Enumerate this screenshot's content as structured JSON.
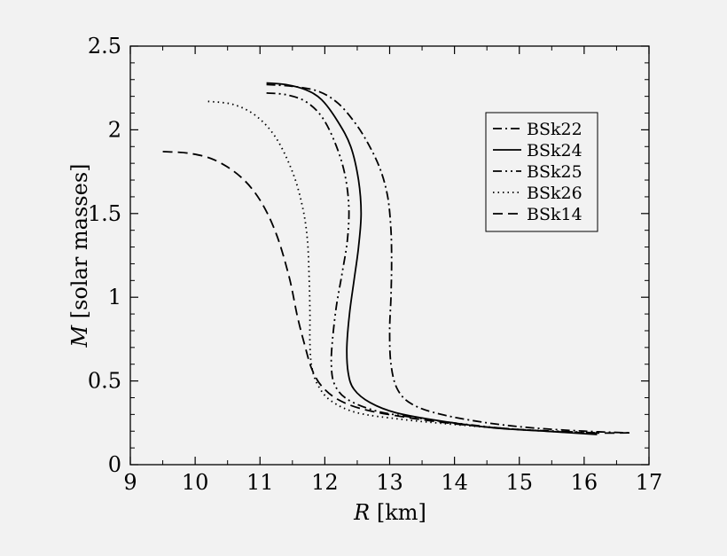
{
  "chart_data": {
    "type": "line",
    "xlabel": {
      "symbol": "R",
      "unit": " [km]"
    },
    "ylabel": {
      "symbol": "M",
      "unit": " [solar masses]"
    },
    "xlim": [
      9,
      17
    ],
    "ylim": [
      0,
      2.5
    ],
    "xticks": [
      "9",
      "10",
      "11",
      "12",
      "13",
      "14",
      "15",
      "16",
      "17"
    ],
    "yticks": [
      "0",
      "0.5",
      "1",
      "1.5",
      "2",
      "2.5"
    ],
    "grid": false,
    "legend_position": "top-right",
    "series": [
      {
        "name": "BSk22",
        "dash": "dashdot",
        "points": [
          [
            11.1,
            2.27
          ],
          [
            11.5,
            2.26
          ],
          [
            11.9,
            2.23
          ],
          [
            12.2,
            2.16
          ],
          [
            12.45,
            2.05
          ],
          [
            12.65,
            1.93
          ],
          [
            12.85,
            1.77
          ],
          [
            12.97,
            1.6
          ],
          [
            13.02,
            1.4
          ],
          [
            13.03,
            1.2
          ],
          [
            13.02,
            1.0
          ],
          [
            13.0,
            0.8
          ],
          [
            13.02,
            0.6
          ],
          [
            13.12,
            0.45
          ],
          [
            13.35,
            0.36
          ],
          [
            13.8,
            0.3
          ],
          [
            14.5,
            0.25
          ],
          [
            15.2,
            0.22
          ],
          [
            16.0,
            0.2
          ],
          [
            16.7,
            0.19
          ]
        ]
      },
      {
        "name": "BSk24",
        "dash": "solid",
        "points": [
          [
            11.1,
            2.28
          ],
          [
            11.4,
            2.27
          ],
          [
            11.7,
            2.24
          ],
          [
            11.95,
            2.18
          ],
          [
            12.2,
            2.05
          ],
          [
            12.4,
            1.9
          ],
          [
            12.52,
            1.7
          ],
          [
            12.56,
            1.5
          ],
          [
            12.52,
            1.3
          ],
          [
            12.45,
            1.1
          ],
          [
            12.38,
            0.9
          ],
          [
            12.34,
            0.7
          ],
          [
            12.36,
            0.55
          ],
          [
            12.45,
            0.45
          ],
          [
            12.7,
            0.37
          ],
          [
            13.1,
            0.31
          ],
          [
            13.8,
            0.26
          ],
          [
            14.6,
            0.22
          ],
          [
            15.4,
            0.2
          ],
          [
            16.2,
            0.18
          ]
        ]
      },
      {
        "name": "BSk25",
        "dash": "dashdot2",
        "points": [
          [
            11.1,
            2.22
          ],
          [
            11.4,
            2.21
          ],
          [
            11.7,
            2.17
          ],
          [
            11.95,
            2.08
          ],
          [
            12.15,
            1.93
          ],
          [
            12.3,
            1.75
          ],
          [
            12.37,
            1.55
          ],
          [
            12.35,
            1.35
          ],
          [
            12.27,
            1.15
          ],
          [
            12.18,
            0.95
          ],
          [
            12.12,
            0.75
          ],
          [
            12.1,
            0.6
          ],
          [
            12.15,
            0.48
          ],
          [
            12.35,
            0.39
          ],
          [
            12.8,
            0.32
          ],
          [
            13.4,
            0.28
          ],
          [
            14.2,
            0.24
          ],
          [
            15.0,
            0.21
          ],
          [
            16.2,
            0.19
          ]
        ]
      },
      {
        "name": "BSk26",
        "dash": "dotted",
        "points": [
          [
            10.2,
            2.17
          ],
          [
            10.6,
            2.15
          ],
          [
            10.95,
            2.08
          ],
          [
            11.25,
            1.95
          ],
          [
            11.5,
            1.75
          ],
          [
            11.65,
            1.55
          ],
          [
            11.73,
            1.35
          ],
          [
            11.76,
            1.1
          ],
          [
            11.77,
            0.9
          ],
          [
            11.77,
            0.72
          ],
          [
            11.8,
            0.58
          ],
          [
            11.9,
            0.47
          ],
          [
            12.1,
            0.38
          ],
          [
            12.5,
            0.31
          ],
          [
            13.2,
            0.27
          ],
          [
            14.0,
            0.24
          ],
          [
            15.0,
            0.21
          ],
          [
            16.2,
            0.19
          ]
        ]
      },
      {
        "name": "BSk14",
        "dash": "dashed",
        "points": [
          [
            9.5,
            1.87
          ],
          [
            9.9,
            1.86
          ],
          [
            10.3,
            1.82
          ],
          [
            10.7,
            1.72
          ],
          [
            11.0,
            1.58
          ],
          [
            11.25,
            1.38
          ],
          [
            11.45,
            1.12
          ],
          [
            11.58,
            0.88
          ],
          [
            11.7,
            0.7
          ],
          [
            11.8,
            0.57
          ],
          [
            11.95,
            0.47
          ],
          [
            12.2,
            0.39
          ],
          [
            12.6,
            0.33
          ],
          [
            13.3,
            0.28
          ],
          [
            14.1,
            0.24
          ],
          [
            15.0,
            0.21
          ],
          [
            16.0,
            0.19
          ],
          [
            16.7,
            0.19
          ]
        ]
      }
    ]
  }
}
